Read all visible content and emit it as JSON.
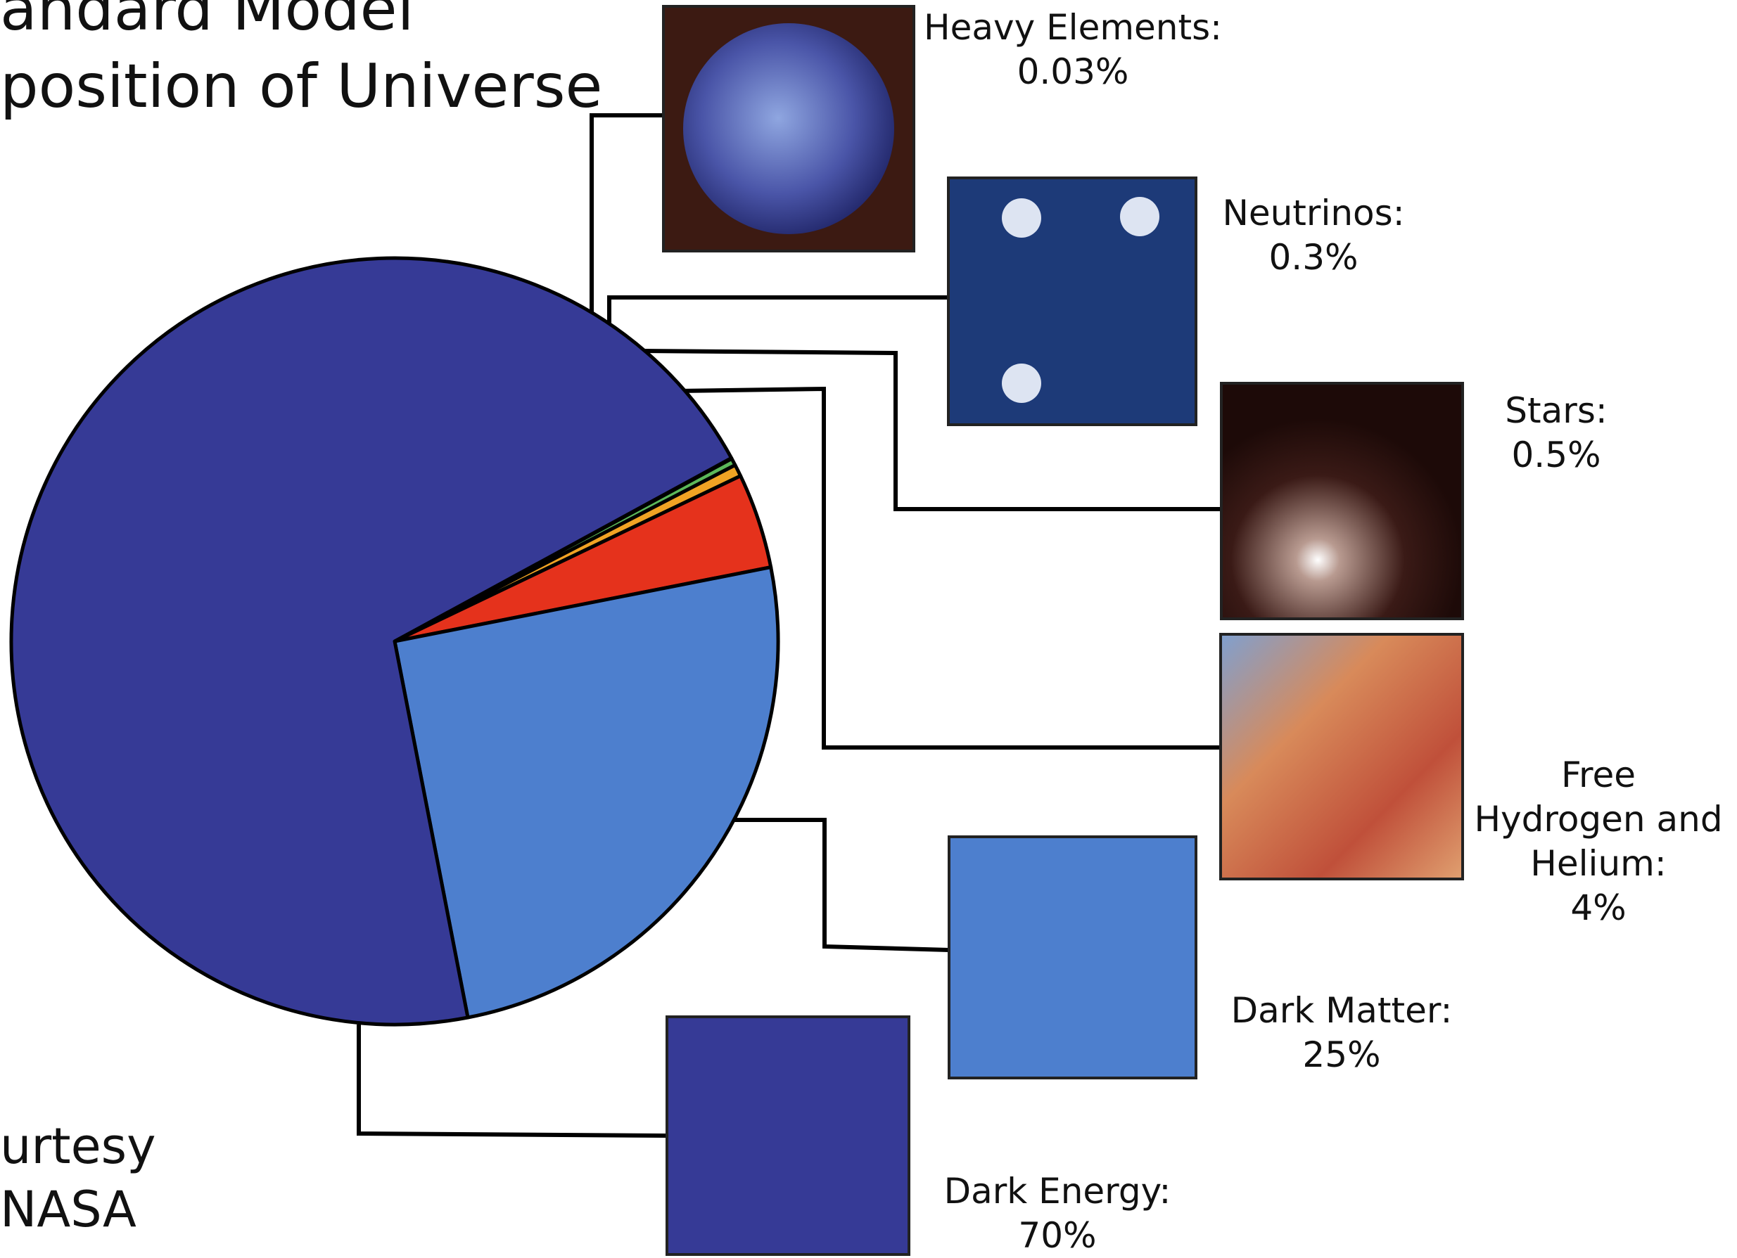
{
  "chart_data": {
    "type": "pie",
    "title": "andard Model",
    "subtitle": "position of Universe",
    "annotations": [
      "urtesy",
      "NASA"
    ],
    "categories": [
      "Heavy Elements:",
      "Neutrinos:",
      "Stars:",
      "Free Hydrogen and Helium:",
      "Dark Matter:",
      "Dark Energy:"
    ],
    "values": [
      0.03,
      0.3,
      0.5,
      4,
      25,
      70
    ],
    "value_labels": [
      "0.03%",
      "0.3%",
      "0.5%",
      "4%",
      "25%",
      "70%"
    ],
    "colors": [
      "#2fb6c6",
      "#5bb85a",
      "#f0a324",
      "#e5321c",
      "#4d7fce",
      "#363a96"
    ]
  }
}
